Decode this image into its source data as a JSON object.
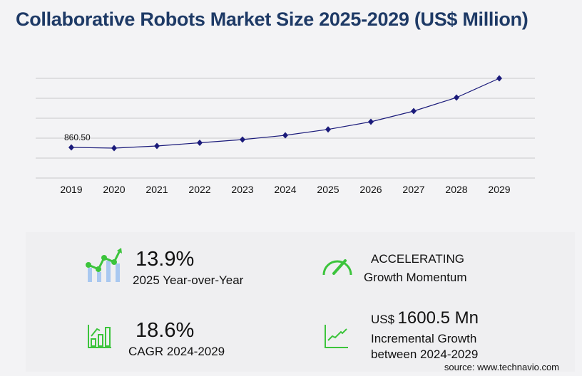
{
  "title": "Collaborative Robots Market Size 2025-2029 (US$ Million)",
  "chart_data": {
    "type": "line",
    "title": "Collaborative Robots Market Size 2025-2029 (US$ Million)",
    "categories": [
      "2019",
      "2020",
      "2021",
      "2022",
      "2023",
      "2024",
      "2025",
      "2026",
      "2027",
      "2028",
      "2029"
    ],
    "values": [
      860.5,
      840,
      900,
      990,
      1080,
      1199.5,
      1366,
      1580,
      1880,
      2260,
      2800
    ],
    "data_labels": {
      "2019": "860.50"
    },
    "ylim": [
      0,
      2800
    ],
    "y_gridlines": 6,
    "grid": true,
    "line_color": "#1a1a7a"
  },
  "stats": {
    "yoy_value": "13.9%",
    "yoy_label": "2025 Year-over-Year",
    "momentum_value": "ACCELERATING",
    "momentum_label": "Growth Momentum",
    "cagr_value": "18.6%",
    "cagr_label": "CAGR 2024-2029",
    "incr_prefix": "US$",
    "incr_value": "1600.5 Mn",
    "incr_label1": "Incremental Growth",
    "incr_label2": "between 2024-2029"
  },
  "source": "source: www.technavio.com",
  "colors": {
    "accent": "#3cc43c",
    "title": "#1e3a66",
    "bar": "#a9c8f0"
  }
}
